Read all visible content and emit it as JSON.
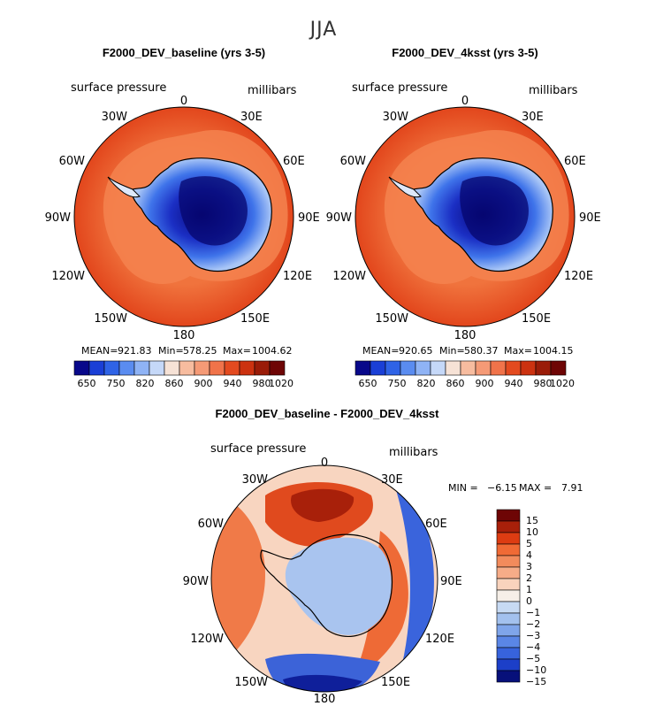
{
  "figure_title": "JJA",
  "chart_data": [
    {
      "type": "polar-contour",
      "title": "F2000_DEV_baseline (yrs 3-5)",
      "variable": "surface pressure",
      "units": "millibars",
      "lon_labels": [
        "0",
        "30E",
        "60E",
        "90E",
        "120E",
        "150E",
        "180",
        "150W",
        "120W",
        "90W",
        "60W",
        "30W"
      ],
      "stats": {
        "mean_label": "MEAN=",
        "mean": "921.83",
        "min_label": "Min=",
        "min": "578.25",
        "max_label": "Max=",
        "max": "1004.62"
      },
      "colorbar_labels": [
        "650",
        "750",
        "820",
        "860",
        "900",
        "940",
        "980",
        "1020"
      ]
    },
    {
      "type": "polar-contour",
      "title": "F2000_DEV_4ksst (yrs 3-5)",
      "variable": "surface pressure",
      "units": "millibars",
      "lon_labels": [
        "0",
        "30E",
        "60E",
        "90E",
        "120E",
        "150E",
        "180",
        "150W",
        "120W",
        "90W",
        "60W",
        "30W"
      ],
      "stats": {
        "mean_label": "MEAN=",
        "mean": "920.65",
        "min_label": "Min=",
        "min": "580.37",
        "max_label": "Max=",
        "max": "1004.15"
      },
      "colorbar_labels": [
        "650",
        "750",
        "820",
        "860",
        "900",
        "940",
        "980",
        "1020"
      ]
    },
    {
      "type": "polar-contour-difference",
      "title": "F2000_DEV_baseline - F2000_DEV_4ksst",
      "variable": "surface pressure",
      "units": "millibars",
      "lon_labels": [
        "0",
        "30E",
        "60E",
        "90E",
        "120E",
        "150E",
        "180",
        "150W",
        "120W",
        "90W",
        "60W",
        "30W"
      ],
      "stats": {
        "min_label": "MIN =",
        "min": "−6.15",
        "max_label": "MAX =",
        "max": "7.91"
      },
      "colorbar_labels": [
        "15",
        "10",
        "5",
        "4",
        "3",
        "2",
        "1",
        "0",
        "−1",
        "−2",
        "−3",
        "−4",
        "−5",
        "−10",
        "−15"
      ]
    }
  ],
  "colors": {
    "abs_scale": [
      "#08088a",
      "#1a3fd6",
      "#2f63e6",
      "#5a8cf0",
      "#8fb3f5",
      "#c5d8f8",
      "#f6e2d6",
      "#f7bc9f",
      "#f59a76",
      "#f0734a",
      "#e34a1f",
      "#cc3210",
      "#9a1c08",
      "#6e0505"
    ],
    "diff_scale": [
      "#6e0505",
      "#a8200a",
      "#dd3c12",
      "#f06a35",
      "#f28b5c",
      "#f6ac88",
      "#f9d3bd",
      "#f6efe8",
      "#c7daf3",
      "#a3c1ee",
      "#7fa5ea",
      "#5a86e6",
      "#3763dc",
      "#1c3fc8",
      "#07107a"
    ],
    "land": "#ffffff",
    "border": "#000000"
  }
}
